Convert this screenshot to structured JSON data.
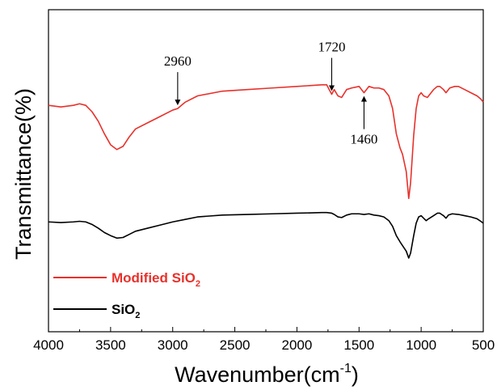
{
  "chart_data": {
    "type": "line",
    "title": "",
    "xlabel": "Wavenumber(cm",
    "xlabel_sup": "-1",
    "xlabel_close": ")",
    "ylabel": "Transmittance(%)",
    "xlim": [
      4000,
      500
    ],
    "x_reversed": true,
    "y_ticks_shown": false,
    "grid": false,
    "x_ticks": [
      "4000",
      "3500",
      "3000",
      "2500",
      "2000",
      "1500",
      "1000",
      "500"
    ],
    "legend": {
      "placement": "bottom-left"
    },
    "series": [
      {
        "name": "Modified SiO",
        "name_sub": "2",
        "color": "#e8312b",
        "points": [
          [
            4000,
            64
          ],
          [
            3900,
            63
          ],
          [
            3800,
            64
          ],
          [
            3750,
            65
          ],
          [
            3700,
            64
          ],
          [
            3650,
            60
          ],
          [
            3600,
            54
          ],
          [
            3550,
            46
          ],
          [
            3500,
            39
          ],
          [
            3450,
            36
          ],
          [
            3400,
            38
          ],
          [
            3350,
            44
          ],
          [
            3300,
            49
          ],
          [
            3200,
            53
          ],
          [
            3100,
            57
          ],
          [
            3000,
            61
          ],
          [
            2960,
            62
          ],
          [
            2900,
            66
          ],
          [
            2800,
            70
          ],
          [
            2600,
            73
          ],
          [
            2400,
            74
          ],
          [
            2200,
            75
          ],
          [
            2000,
            76
          ],
          [
            1800,
            77
          ],
          [
            1760,
            77
          ],
          [
            1740,
            74
          ],
          [
            1720,
            71
          ],
          [
            1700,
            74
          ],
          [
            1670,
            70
          ],
          [
            1640,
            69
          ],
          [
            1600,
            74
          ],
          [
            1560,
            75
          ],
          [
            1500,
            76
          ],
          [
            1460,
            72
          ],
          [
            1420,
            76
          ],
          [
            1380,
            75
          ],
          [
            1340,
            75
          ],
          [
            1300,
            74
          ],
          [
            1260,
            70
          ],
          [
            1230,
            62
          ],
          [
            1200,
            46
          ],
          [
            1170,
            37
          ],
          [
            1150,
            33
          ],
          [
            1120,
            22
          ],
          [
            1100,
            5
          ],
          [
            1085,
            15
          ],
          [
            1060,
            45
          ],
          [
            1040,
            62
          ],
          [
            1020,
            70
          ],
          [
            1000,
            72
          ],
          [
            980,
            70
          ],
          [
            950,
            69
          ],
          [
            900,
            74
          ],
          [
            870,
            76
          ],
          [
            850,
            76
          ],
          [
            820,
            74
          ],
          [
            800,
            72
          ],
          [
            770,
            75
          ],
          [
            730,
            76
          ],
          [
            700,
            76
          ],
          [
            650,
            74
          ],
          [
            600,
            72
          ],
          [
            550,
            70
          ],
          [
            520,
            68
          ],
          [
            500,
            66
          ]
        ]
      },
      {
        "name": "SiO",
        "name_sub": "2",
        "color": "#000000",
        "points": [
          [
            4000,
            62
          ],
          [
            3900,
            61
          ],
          [
            3800,
            62
          ],
          [
            3750,
            63
          ],
          [
            3700,
            62
          ],
          [
            3650,
            58
          ],
          [
            3600,
            52
          ],
          [
            3550,
            45
          ],
          [
            3500,
            40
          ],
          [
            3450,
            36
          ],
          [
            3400,
            37
          ],
          [
            3350,
            42
          ],
          [
            3300,
            47
          ],
          [
            3200,
            52
          ],
          [
            3100,
            57
          ],
          [
            3000,
            62
          ],
          [
            2900,
            66
          ],
          [
            2800,
            70
          ],
          [
            2600,
            73
          ],
          [
            2400,
            74
          ],
          [
            2200,
            75
          ],
          [
            2000,
            76
          ],
          [
            1800,
            77
          ],
          [
            1760,
            77
          ],
          [
            1720,
            76
          ],
          [
            1700,
            74
          ],
          [
            1670,
            70
          ],
          [
            1640,
            69
          ],
          [
            1600,
            73
          ],
          [
            1560,
            75
          ],
          [
            1500,
            75
          ],
          [
            1460,
            74
          ],
          [
            1420,
            75
          ],
          [
            1380,
            73
          ],
          [
            1340,
            72
          ],
          [
            1300,
            70
          ],
          [
            1260,
            64
          ],
          [
            1230,
            55
          ],
          [
            1200,
            40
          ],
          [
            1170,
            30
          ],
          [
            1150,
            24
          ],
          [
            1120,
            15
          ],
          [
            1100,
            4
          ],
          [
            1085,
            12
          ],
          [
            1060,
            40
          ],
          [
            1040,
            60
          ],
          [
            1020,
            70
          ],
          [
            1000,
            72
          ],
          [
            980,
            68
          ],
          [
            960,
            64
          ],
          [
            940,
            67
          ],
          [
            900,
            72
          ],
          [
            870,
            76
          ],
          [
            850,
            76
          ],
          [
            820,
            72
          ],
          [
            800,
            68
          ],
          [
            780,
            73
          ],
          [
            750,
            75
          ],
          [
            700,
            74
          ],
          [
            650,
            72
          ],
          [
            600,
            70
          ],
          [
            550,
            67
          ],
          [
            520,
            63
          ],
          [
            500,
            60
          ]
        ]
      }
    ],
    "annotations": [
      {
        "text": "2960",
        "x": 2960,
        "series": 0,
        "side": "above"
      },
      {
        "text": "1720",
        "x": 1720,
        "series": 0,
        "side": "above"
      },
      {
        "text": "1460",
        "x": 1460,
        "series": 0,
        "side": "below"
      }
    ]
  }
}
